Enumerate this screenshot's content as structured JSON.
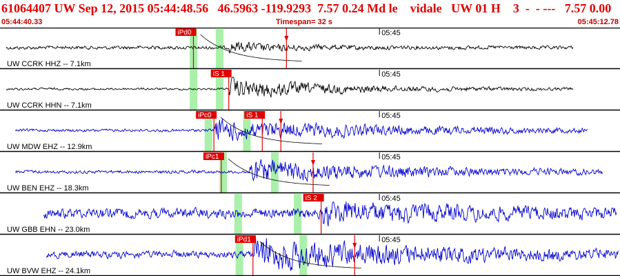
{
  "header": {
    "title": "61064407 UW Sep 12, 2015 05:44:48.56   46.5963 -119.9293  7.57 0.24 Md le    vidale   UW 01 H    3  -  - ---   7.57 0.00",
    "start_time": "05:44:40.33",
    "timespan": "Timespan=  32 s",
    "end_time": "05:45:12.78"
  },
  "colors": {
    "header_red": "#e00000",
    "short_period_trace": "#0000cc",
    "broadband_trace": "#000000",
    "pick_red": "#e00000",
    "window_green": "#aaf0aa",
    "divider": "#000000"
  },
  "channels": [
    {
      "label": "UW CCRK HHZ -- 7.1km",
      "minute_label": "05:45",
      "trace_color": "#000000",
      "trace_start": 0.01,
      "trace_end": 0.925,
      "onset": 0.37,
      "amp": 0.12,
      "noise": 0.05,
      "coda": 5,
      "picks": [
        {
          "label": "iPd0",
          "pos": 0.312,
          "type": "P"
        },
        {
          "label": "",
          "pos": 0.462,
          "type": "S"
        }
      ],
      "windows": [
        0.306,
        0.348
      ],
      "curve": true
    },
    {
      "label": "UW CCRK HHN -- 7.1km",
      "minute_label": "05:45",
      "trace_color": "#000000",
      "trace_start": 0.01,
      "trace_end": 0.925,
      "onset": 0.37,
      "amp": 0.26,
      "noise": 0.03,
      "coda": 3,
      "picks": [
        {
          "label": "iS 1",
          "pos": 0.369,
          "type": "S"
        }
      ],
      "windows": [
        0.306,
        0.348
      ],
      "curve": false
    },
    {
      "label": "UW MDW EHZ -- 12.9km",
      "minute_label": "05:45",
      "trace_color": "#0000cc",
      "trace_start": 0.025,
      "trace_end": 0.948,
      "onset": 0.345,
      "amp": 0.28,
      "noise": 0.04,
      "coda": 2,
      "picks": [
        {
          "label": "iPc0",
          "pos": 0.345,
          "type": "P"
        },
        {
          "label": "iS 1",
          "pos": 0.423,
          "type": "S"
        },
        {
          "label": "",
          "pos": 0.453,
          "type": "S"
        }
      ],
      "windows": [
        0.33,
        0.392
      ],
      "curve": true
    },
    {
      "label": "UW BEN EHZ -- 18.3km",
      "minute_label": "05:45",
      "trace_color": "#0000cc",
      "trace_start": 0.025,
      "trace_end": 0.972,
      "onset": 0.4,
      "amp": 0.3,
      "noise": 0.045,
      "coda": 2,
      "picks": [
        {
          "label": "iPc1",
          "pos": 0.357,
          "type": "P"
        },
        {
          "label": "",
          "pos": 0.505,
          "type": "S"
        }
      ],
      "windows": [
        0.354,
        0.437
      ],
      "curve": true
    },
    {
      "label": "UW GBB EHN -- 23.0km",
      "minute_label": "05:45",
      "trace_color": "#0000cc",
      "trace_start": 0.07,
      "trace_end": 0.995,
      "onset": 0.52,
      "amp": 0.24,
      "noise": 0.14,
      "coda": 2,
      "picks": [
        {
          "label": "iS 2",
          "pos": 0.518,
          "type": "S"
        }
      ],
      "windows": [
        0.378,
        0.474
      ],
      "curve": false
    },
    {
      "label": "UW BVW EHZ -- 24.1km",
      "minute_label": "05:45",
      "trace_color": "#0000cc",
      "trace_start": 0.075,
      "trace_end": 0.998,
      "onset": 0.41,
      "amp": 0.4,
      "noise": 0.1,
      "coda": 2,
      "picks": [
        {
          "label": "iPd1",
          "pos": 0.408,
          "type": "P"
        },
        {
          "label": "",
          "pos": 0.572,
          "type": "S"
        }
      ],
      "windows": [
        0.38,
        0.483
      ],
      "curve": true
    }
  ]
}
